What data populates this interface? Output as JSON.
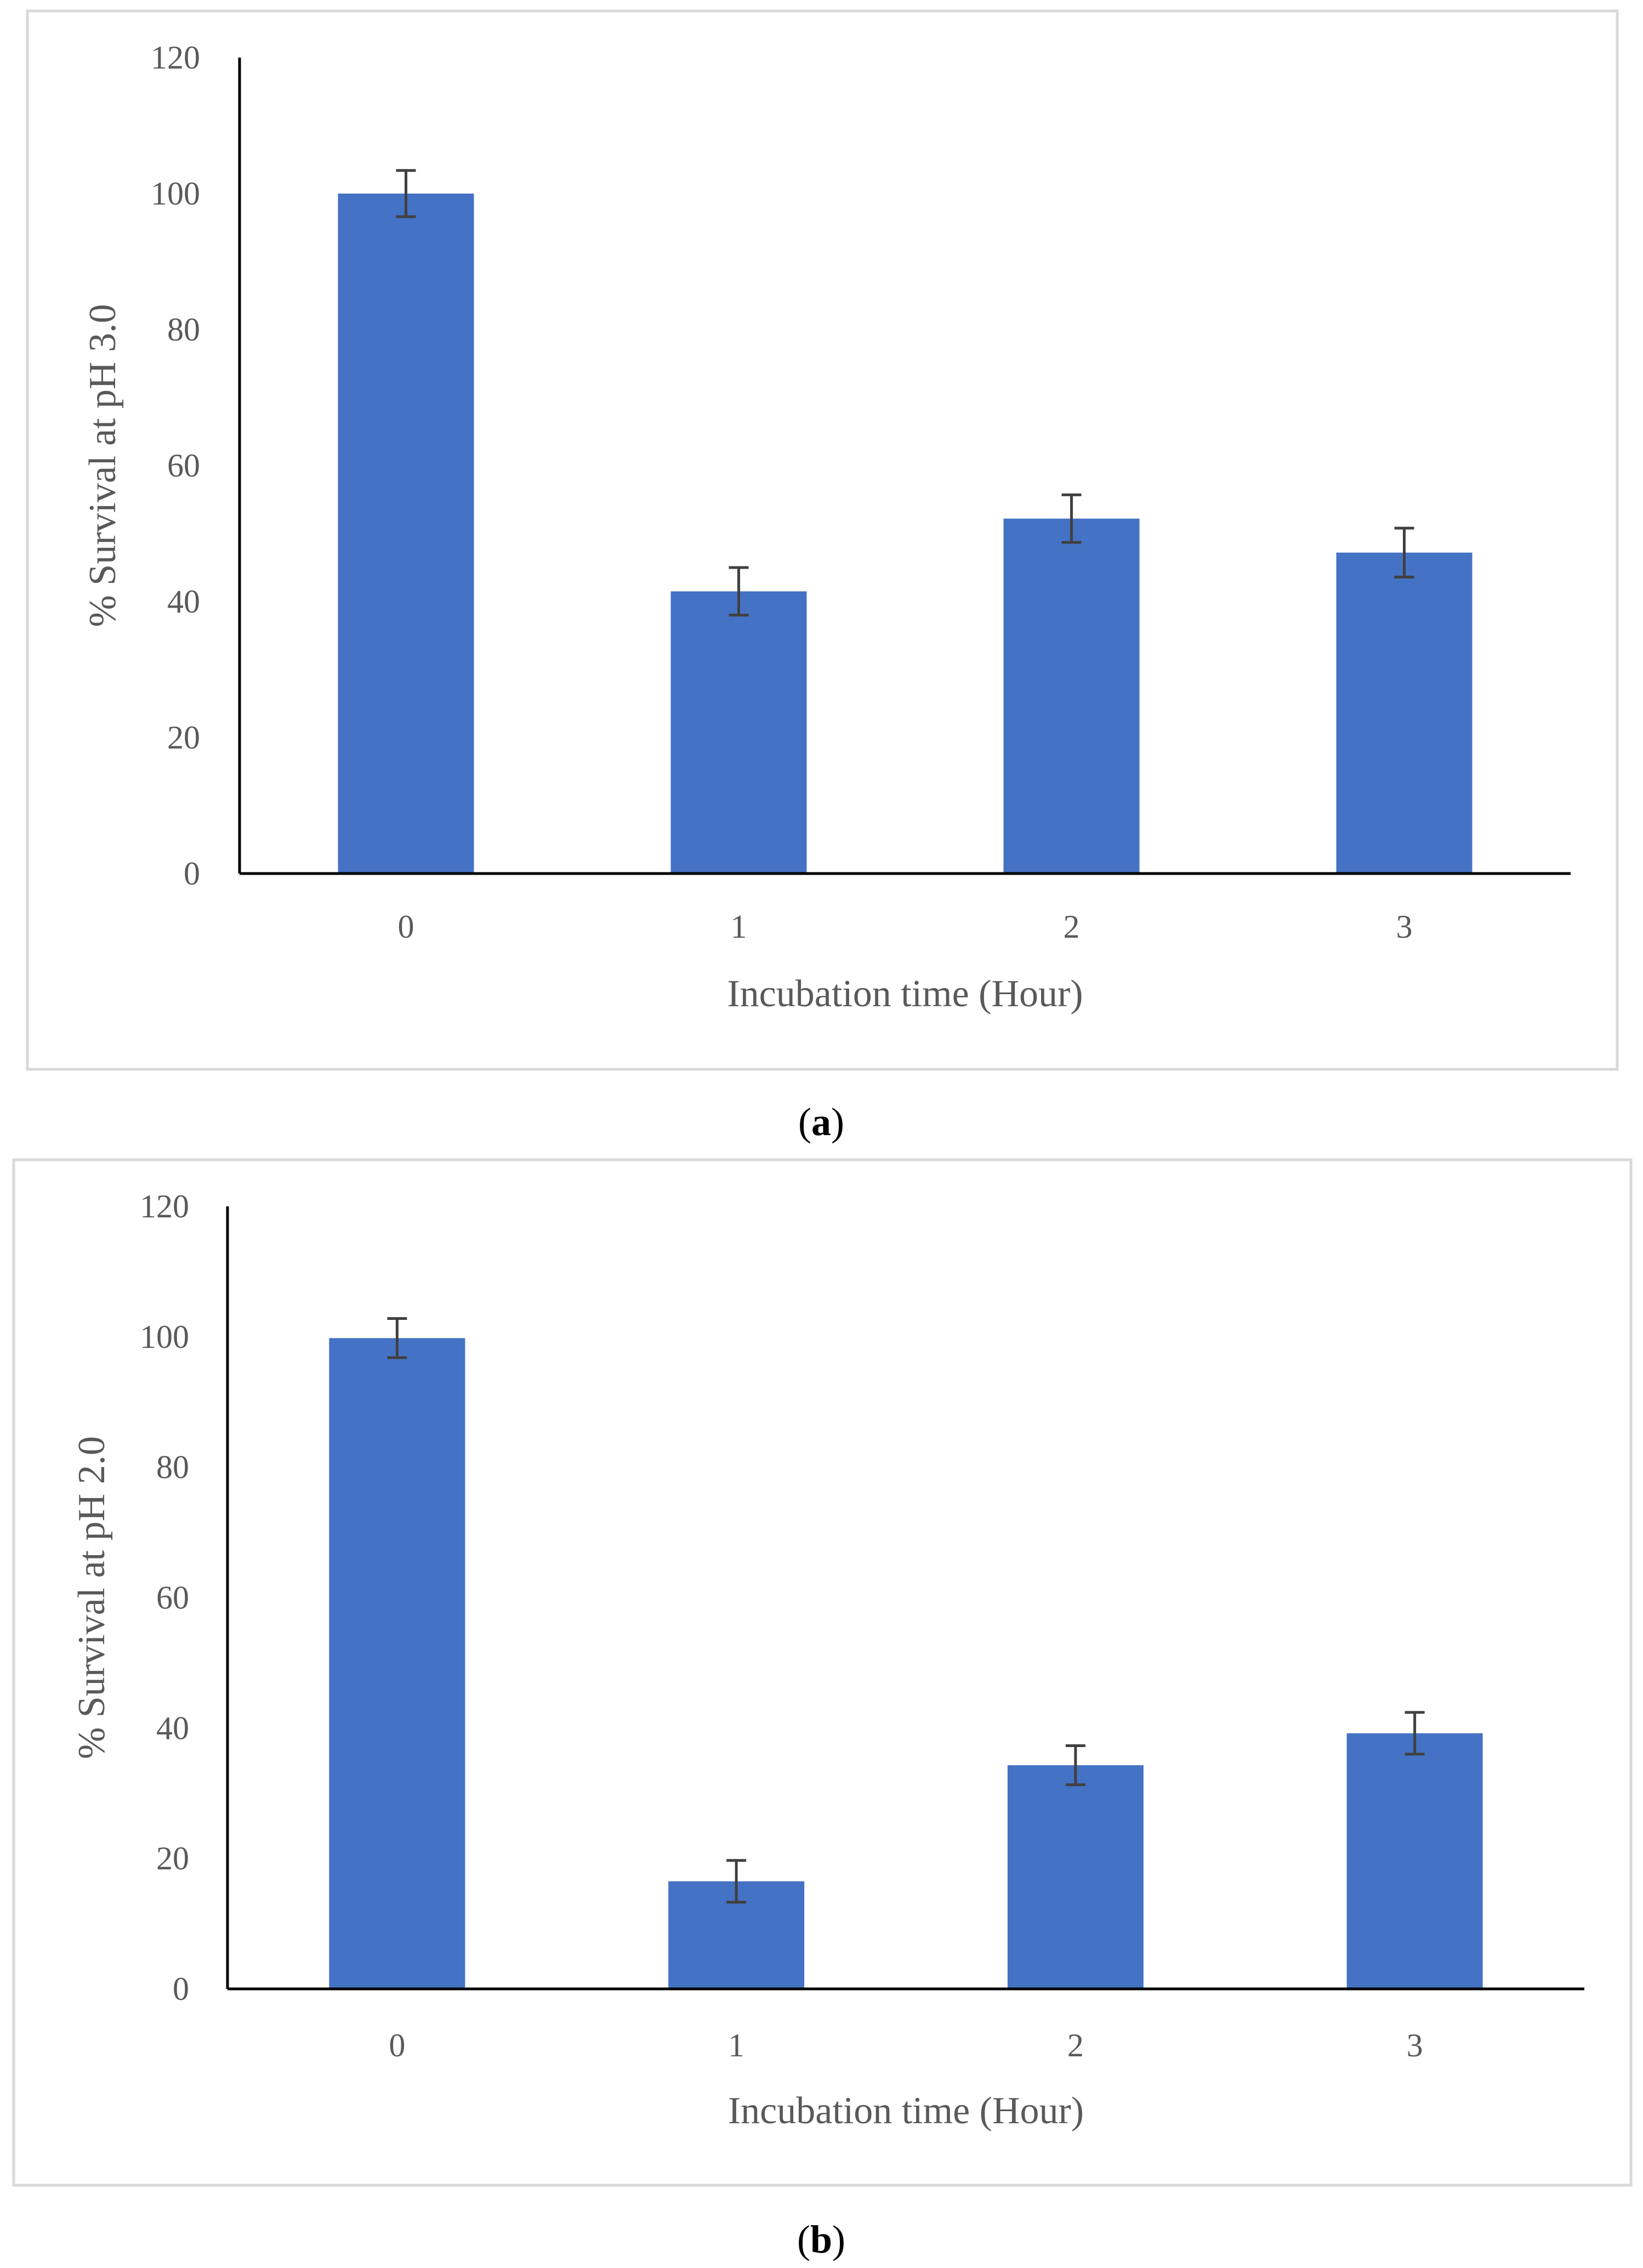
{
  "colors": {
    "bar": "#4472C4",
    "axis": "#000000",
    "tick_text": "#595959",
    "frame": "#D9D9D9",
    "error_bar": "#404040"
  },
  "chart_data": [
    {
      "type": "bar",
      "panel_label": {
        "open": "(",
        "letter": "a",
        "close": ")"
      },
      "title": "",
      "xlabel": "Incubation time (Hour)",
      "ylabel": "% Survival at pH 3.0",
      "categories": [
        "0",
        "1",
        "2",
        "3"
      ],
      "values": [
        100,
        41.5,
        52.2,
        47.2
      ],
      "error": [
        3.4,
        3.5,
        3.5,
        3.6
      ],
      "ylim": [
        0,
        120
      ],
      "yticks": [
        "0",
        "20",
        "40",
        "60",
        "80",
        "100",
        "120"
      ],
      "grid": false,
      "legend": "none"
    },
    {
      "type": "bar",
      "panel_label": {
        "open": "(",
        "letter": "b",
        "close": ")"
      },
      "title": "",
      "xlabel": "Incubation time (Hour)",
      "ylabel": "% Survival at pH 2.0",
      "categories": [
        "0",
        "1",
        "2",
        "3"
      ],
      "values": [
        99.8,
        16.5,
        34.3,
        39.2
      ],
      "error": [
        3.0,
        3.2,
        3.0,
        3.2
      ],
      "ylim": [
        0,
        120
      ],
      "yticks": [
        "0",
        "20",
        "40",
        "60",
        "80",
        "100",
        "120"
      ],
      "grid": false,
      "legend": "none"
    }
  ]
}
